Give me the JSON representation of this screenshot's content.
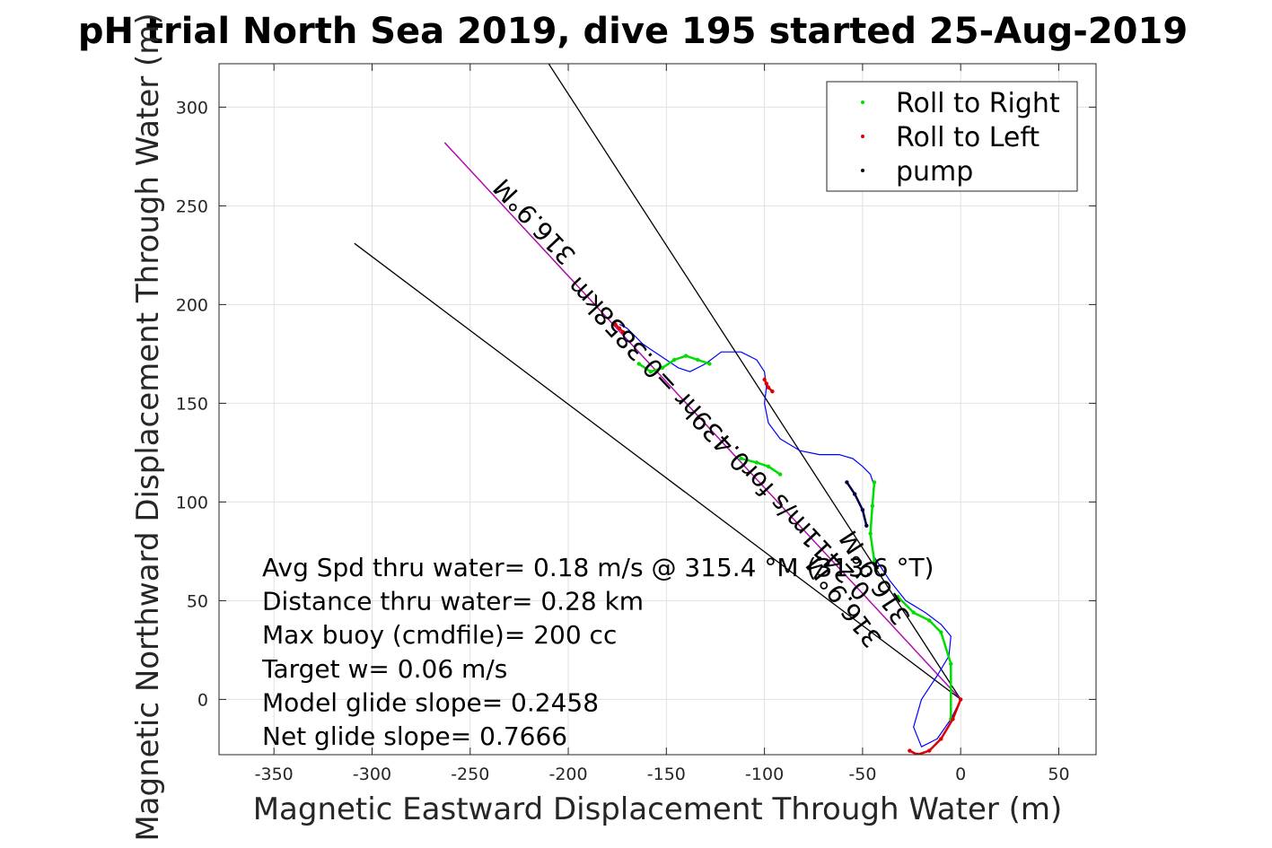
{
  "chart_data": {
    "type": "line",
    "title": "pH trial North Sea 2019, dive 195 started 25-Aug-2019",
    "xlabel": "Magnetic Eastward Displacement Through Water (m)",
    "ylabel": "Magnetic Northward Displacement Through Water (m)",
    "xlim": [
      -378,
      69
    ],
    "ylim": [
      -28,
      322
    ],
    "xticks": [
      -350,
      -300,
      -250,
      -200,
      -150,
      -100,
      -50,
      0,
      50
    ],
    "yticks": [
      0,
      50,
      100,
      150,
      200,
      250,
      300
    ],
    "grid": true,
    "legend_placement": "top-right",
    "legend": [
      {
        "label": "Roll to Right",
        "color": "#00dd00"
      },
      {
        "label": "Roll to Left",
        "color": "#dd0000"
      },
      {
        "label": "pump",
        "color": "#000000"
      }
    ],
    "track": {
      "name": "",
      "color": "#0000ff",
      "x": [
        0,
        -5,
        -12,
        -20,
        -24,
        -20,
        -12,
        -6,
        -5,
        -10,
        -18,
        -28,
        -36,
        -44,
        -46,
        -45,
        -44,
        -46,
        -50,
        -55,
        -62,
        -72,
        -82,
        -92,
        -98,
        -100,
        -99,
        -100,
        -104,
        -112,
        -122,
        -130,
        -138,
        -144,
        -150,
        -156,
        -162,
        -166,
        -170,
        -174
      ],
      "y": [
        0,
        -10,
        -20,
        -24,
        -14,
        0,
        12,
        22,
        32,
        38,
        44,
        50,
        60,
        72,
        84,
        98,
        108,
        114,
        118,
        122,
        124,
        124,
        126,
        132,
        140,
        150,
        158,
        166,
        172,
        176,
        176,
        170,
        166,
        168,
        172,
        176,
        180,
        184,
        188,
        190
      ]
    },
    "roll_right_segments": [
      {
        "x": [
          -5,
          -5,
          -10,
          -16,
          -24,
          -32
        ],
        "y": [
          -10,
          18,
          34,
          40,
          44,
          52
        ]
      },
      {
        "x": [
          -44,
          -46,
          -45,
          -44
        ],
        "y": [
          70,
          84,
          98,
          110
        ]
      },
      {
        "x": [
          -92,
          -98,
          -104,
          -112
        ],
        "y": [
          114,
          118,
          120,
          122
        ]
      },
      {
        "x": [
          -128,
          -134,
          -140,
          -146,
          -152,
          -158,
          -164
        ],
        "y": [
          170,
          172,
          174,
          172,
          168,
          166,
          170
        ]
      }
    ],
    "roll_left_segments": [
      {
        "x": [
          0,
          -4,
          -10,
          -16,
          -22,
          -26
        ],
        "y": [
          0,
          -10,
          -20,
          -26,
          -28,
          -26
        ]
      },
      {
        "x": [
          -96,
          -98,
          -99,
          -100
        ],
        "y": [
          156,
          158,
          160,
          162
        ]
      },
      {
        "x": [
          -172,
          -174,
          -176
        ],
        "y": [
          186,
          188,
          190
        ]
      }
    ],
    "pump_segments": [
      {
        "x": [
          -58,
          -54,
          -50,
          -48
        ],
        "y": [
          110,
          104,
          96,
          88
        ]
      }
    ],
    "lines": [
      {
        "name": "",
        "color": "#000000",
        "x": [
          0,
          -309
        ],
        "y": [
          0,
          231
        ]
      },
      {
        "name": "",
        "color": "#000000",
        "x": [
          0,
          -210
        ],
        "y": [
          0,
          322
        ]
      },
      {
        "name": "",
        "color": "#000000",
        "x": [
          0,
          -263
        ],
        "y": [
          0,
          282
        ]
      },
      {
        "name": "",
        "color": "#cc00cc",
        "x": [
          0,
          -263
        ],
        "y": [
          0,
          282
        ]
      }
    ],
    "annotations": [
      {
        "text": "316.9°M",
        "x": -214,
        "y": 245,
        "angle": 227
      },
      {
        "text": "0.2411m/s for0.439hr =0.3858km",
        "x": -120,
        "y": 135,
        "angle": 227
      },
      {
        "text": "316.9°M",
        "x": -40,
        "y": 64,
        "angle": 237
      },
      {
        "text": "316.9°M",
        "x": -56,
        "y": 52,
        "angle": 233
      }
    ],
    "notes": [
      "Avg Spd thru water=  0.18 m/s @ 315.4 °M (313.6 °T)",
      "Distance thru water=  0.28 km",
      "Max buoy (cmdfile)= 200 cc",
      "Target w= 0.06 m/s",
      "Model glide slope= 0.2458",
      "Net glide slope= 0.7666"
    ]
  }
}
